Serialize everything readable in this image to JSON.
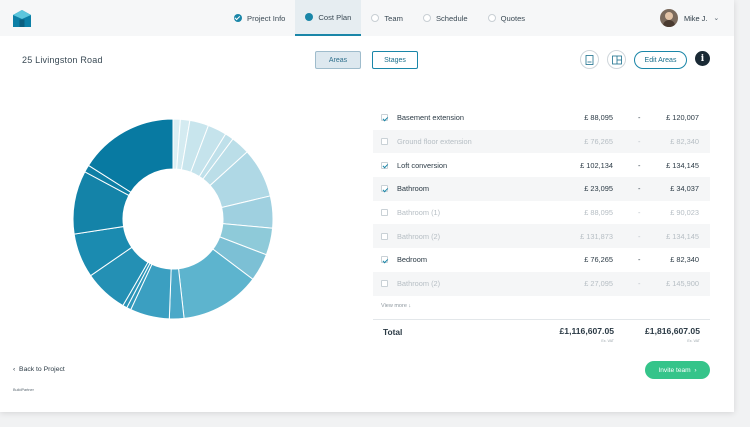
{
  "nav": {
    "items": [
      {
        "label": "Project Info",
        "state": "complete"
      },
      {
        "label": "Cost Plan",
        "state": "active"
      },
      {
        "label": "Team",
        "state": "pending"
      },
      {
        "label": "Schedule",
        "state": "pending"
      },
      {
        "label": "Quotes",
        "state": "pending"
      }
    ]
  },
  "user": {
    "name": "Mike J.",
    "menu_icon": "chevron-down-icon"
  },
  "project": {
    "address": "25 Livingston Road"
  },
  "view_toggle": {
    "areas_label": "Areas",
    "stages_label": "Stages",
    "selected": "Areas"
  },
  "toolbar": {
    "edit_areas_label": "Edit Areas",
    "info_label": "i",
    "icons": [
      "document-icon",
      "excel-icon"
    ]
  },
  "cost_rows": [
    {
      "name": "Basement extension",
      "min": "£ 88,095",
      "dash": "-",
      "max": "£ 120,007",
      "checked": true
    },
    {
      "name": "Ground floor extension",
      "min": "£ 76,265",
      "dash": "-",
      "max": "£ 82,340",
      "checked": false
    },
    {
      "name": "Loft conversion",
      "min": "£ 102,134",
      "dash": "-",
      "max": "£ 134,145",
      "checked": true
    },
    {
      "name": "Bathroom",
      "min": "£ 23,095",
      "dash": "-",
      "max": "£ 34,037",
      "checked": true
    },
    {
      "name": "Bathroom (1)",
      "min": "£ 88,095",
      "dash": "-",
      "max": "£ 90,023",
      "checked": false
    },
    {
      "name": "Bathroom (2)",
      "min": "£ 131,873",
      "dash": "-",
      "max": "£ 134,145",
      "checked": false
    },
    {
      "name": "Bedroom",
      "min": "£ 76,265",
      "dash": "-",
      "max": "£ 82,340",
      "checked": true
    },
    {
      "name": "Bathroom (2)",
      "min": "£ 27,095",
      "dash": "-",
      "max": "£ 145,900",
      "checked": false
    }
  ],
  "view_more_label": "View more",
  "totals": {
    "label": "Total",
    "min": "£1,116,607.05",
    "max": "£1,816,607.05",
    "vat_note": "Ex. VAT"
  },
  "footer": {
    "back_label": "Back to Project",
    "invite_label": "Invite team",
    "brand": "BuildPartner"
  },
  "colors": {
    "accent": "#1a86a8",
    "invite": "#35c48a"
  },
  "donut_segments": [
    {
      "value": 1.0,
      "color": "#dbeff4"
    },
    {
      "value": 1.3,
      "color": "#d4ebf1"
    },
    {
      "value": 2.6,
      "color": "#c8e5ed"
    },
    {
      "value": 2.6,
      "color": "#c5e3ec"
    },
    {
      "value": 1.2,
      "color": "#bfe0ea"
    },
    {
      "value": 2.6,
      "color": "#bbdee8"
    },
    {
      "value": 6.8,
      "color": "#afd8e5"
    },
    {
      "value": 4.4,
      "color": "#9fd0e0"
    },
    {
      "value": 3.7,
      "color": "#8ecad9"
    },
    {
      "value": 3.8,
      "color": "#7cc0d5"
    },
    {
      "value": 11.0,
      "color": "#5db4ce"
    },
    {
      "value": 2.0,
      "color": "#4aa8c8"
    },
    {
      "value": 5.4,
      "color": "#3b9fc1"
    },
    {
      "value": 0.6,
      "color": "#2f98bb"
    },
    {
      "value": 0.6,
      "color": "#2a93b7"
    },
    {
      "value": 6.0,
      "color": "#2490b4"
    },
    {
      "value": 6.1,
      "color": "#1b8bb0"
    },
    {
      "value": 8.7,
      "color": "#1483a8"
    },
    {
      "value": 1.0,
      "color": "#0f7fa5"
    },
    {
      "value": 13.6,
      "color": "#087aa2"
    }
  ]
}
